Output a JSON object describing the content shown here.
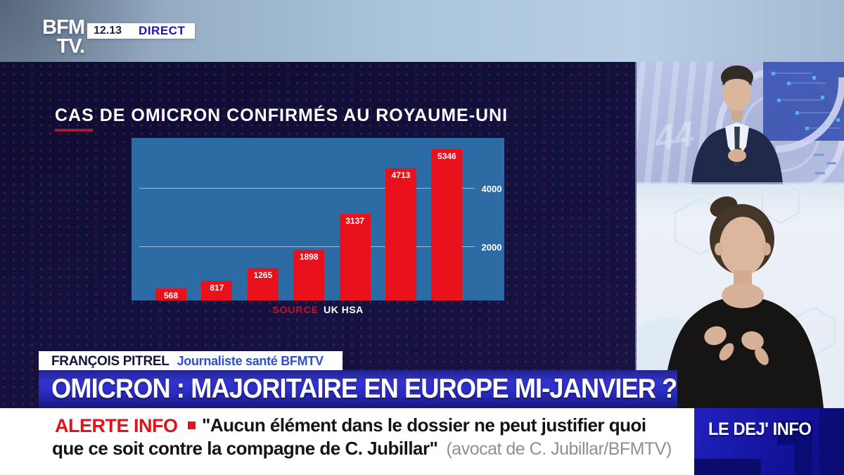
{
  "header": {
    "logo_line1": "BFM",
    "logo_line2": "TV.",
    "time": "12.13",
    "live_badge": "DIRECT"
  },
  "chart_section": {
    "title": "CAS DE OMICRON CONFIRMÉS AU ROYAUME-UNI",
    "source_label": "SOURCE",
    "source_value": "UK HSA"
  },
  "chart_data": {
    "type": "bar",
    "title": "CAS DE OMICRON CONFIRMÉS AU ROYAUME-UNI",
    "values": [
      568,
      817,
      1265,
      1898,
      3137,
      4713,
      5346
    ],
    "value_labels": [
      "568",
      "817",
      "1265",
      "1898",
      "3137",
      "4713",
      "5346"
    ],
    "categories": [
      "",
      "",
      "",
      "",
      "",
      "",
      ""
    ],
    "yticks": [
      2000,
      4000
    ],
    "ylim": [
      0,
      5600
    ],
    "grid": true,
    "tick_side": "right",
    "source": "UK HSA",
    "bar_color": "#e8111c",
    "panel_color": "#2d6ba4",
    "label_color": "#ffffff"
  },
  "reporter": {
    "name": "FRANÇOIS PITREL",
    "role": "Journaliste santé BFMTV"
  },
  "headline": {
    "text": "OMICRON : MAJORITAIRE EN EUROPE MI-JANVIER ?"
  },
  "alert": {
    "label": "ALERTE INFO",
    "quote_line1": "\"Aucun élément dans le dossier ne peut justifier quoi",
    "quote_line2": "que ce soit contre la compagne de C. Jubillar\"",
    "attribution": "(avocat de C. Jubillar/BFMTV)"
  },
  "program": {
    "name": "LE DEJ' INFO"
  },
  "colors": {
    "accent_red": "#e8111c",
    "navy_background": "#131140",
    "chart_panel_blue": "#2d6ba4",
    "banner_blue": "#2c2ec4",
    "header_light_blue": "#aac4da",
    "program_panel_blue": "#12129a"
  }
}
